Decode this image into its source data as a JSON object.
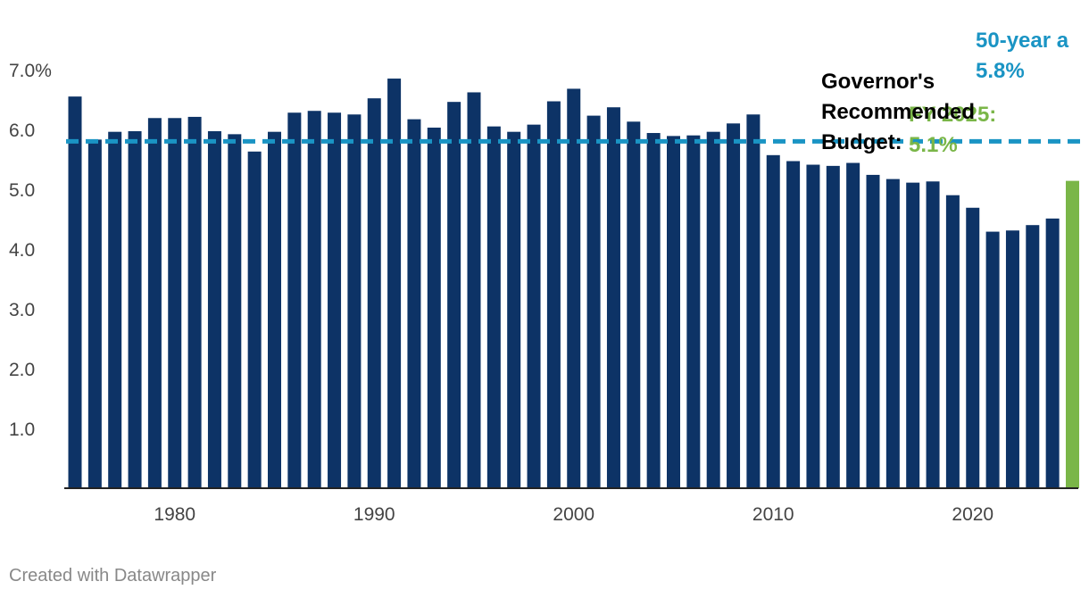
{
  "chart_data": {
    "type": "bar",
    "x": [
      1975,
      1976,
      1977,
      1978,
      1979,
      1980,
      1981,
      1982,
      1983,
      1984,
      1985,
      1986,
      1987,
      1988,
      1989,
      1990,
      1991,
      1992,
      1993,
      1994,
      1995,
      1996,
      1997,
      1998,
      1999,
      2000,
      2001,
      2002,
      2003,
      2004,
      2005,
      2006,
      2007,
      2008,
      2009,
      2010,
      2011,
      2012,
      2013,
      2014,
      2015,
      2016,
      2017,
      2018,
      2019,
      2020,
      2021,
      2022,
      2023,
      2024,
      2025
    ],
    "values": [
      6.55,
      5.83,
      5.96,
      5.97,
      6.19,
      6.19,
      6.21,
      5.97,
      5.92,
      5.63,
      5.96,
      6.28,
      6.31,
      6.28,
      6.25,
      6.52,
      6.85,
      6.17,
      6.03,
      6.46,
      6.62,
      6.05,
      5.96,
      6.08,
      6.47,
      6.68,
      6.23,
      6.37,
      6.13,
      5.94,
      5.89,
      5.9,
      5.96,
      6.1,
      6.25,
      5.57,
      5.47,
      5.41,
      5.39,
      5.44,
      5.24,
      5.17,
      5.11,
      5.13,
      4.9,
      4.69,
      4.29,
      4.31,
      4.4,
      4.51,
      5.14
    ],
    "highlight_index": 50,
    "bar_color": "#0d3366",
    "highlight_color": "#7ab648",
    "average_line": {
      "value": 5.8,
      "color": "#1a94c4"
    },
    "y_ticks": [
      {
        "value": 1,
        "label": "1.0"
      },
      {
        "value": 2,
        "label": "2.0"
      },
      {
        "value": 3,
        "label": "3.0"
      },
      {
        "value": 4,
        "label": "4.0"
      },
      {
        "value": 5,
        "label": "5.0"
      },
      {
        "value": 6,
        "label": "6.0"
      },
      {
        "value": 7,
        "label": "7.0%"
      }
    ],
    "x_ticks": [
      {
        "value": 1980,
        "label": "1980"
      },
      {
        "value": 1990,
        "label": "1990"
      },
      {
        "value": 2000,
        "label": "2000"
      },
      {
        "value": 2010,
        "label": "2010"
      },
      {
        "value": 2020,
        "label": "2020"
      }
    ],
    "ylim": [
      0,
      7
    ],
    "grid": false,
    "annotations": {
      "average_label": [
        "50-year a",
        "5.8%"
      ],
      "governor_label": [
        "Governor's",
        "Recommended",
        "Budget:"
      ],
      "fy_label": [
        "FY 2025:",
        "5.1%"
      ]
    }
  },
  "footer": "Created with Datawrapper"
}
